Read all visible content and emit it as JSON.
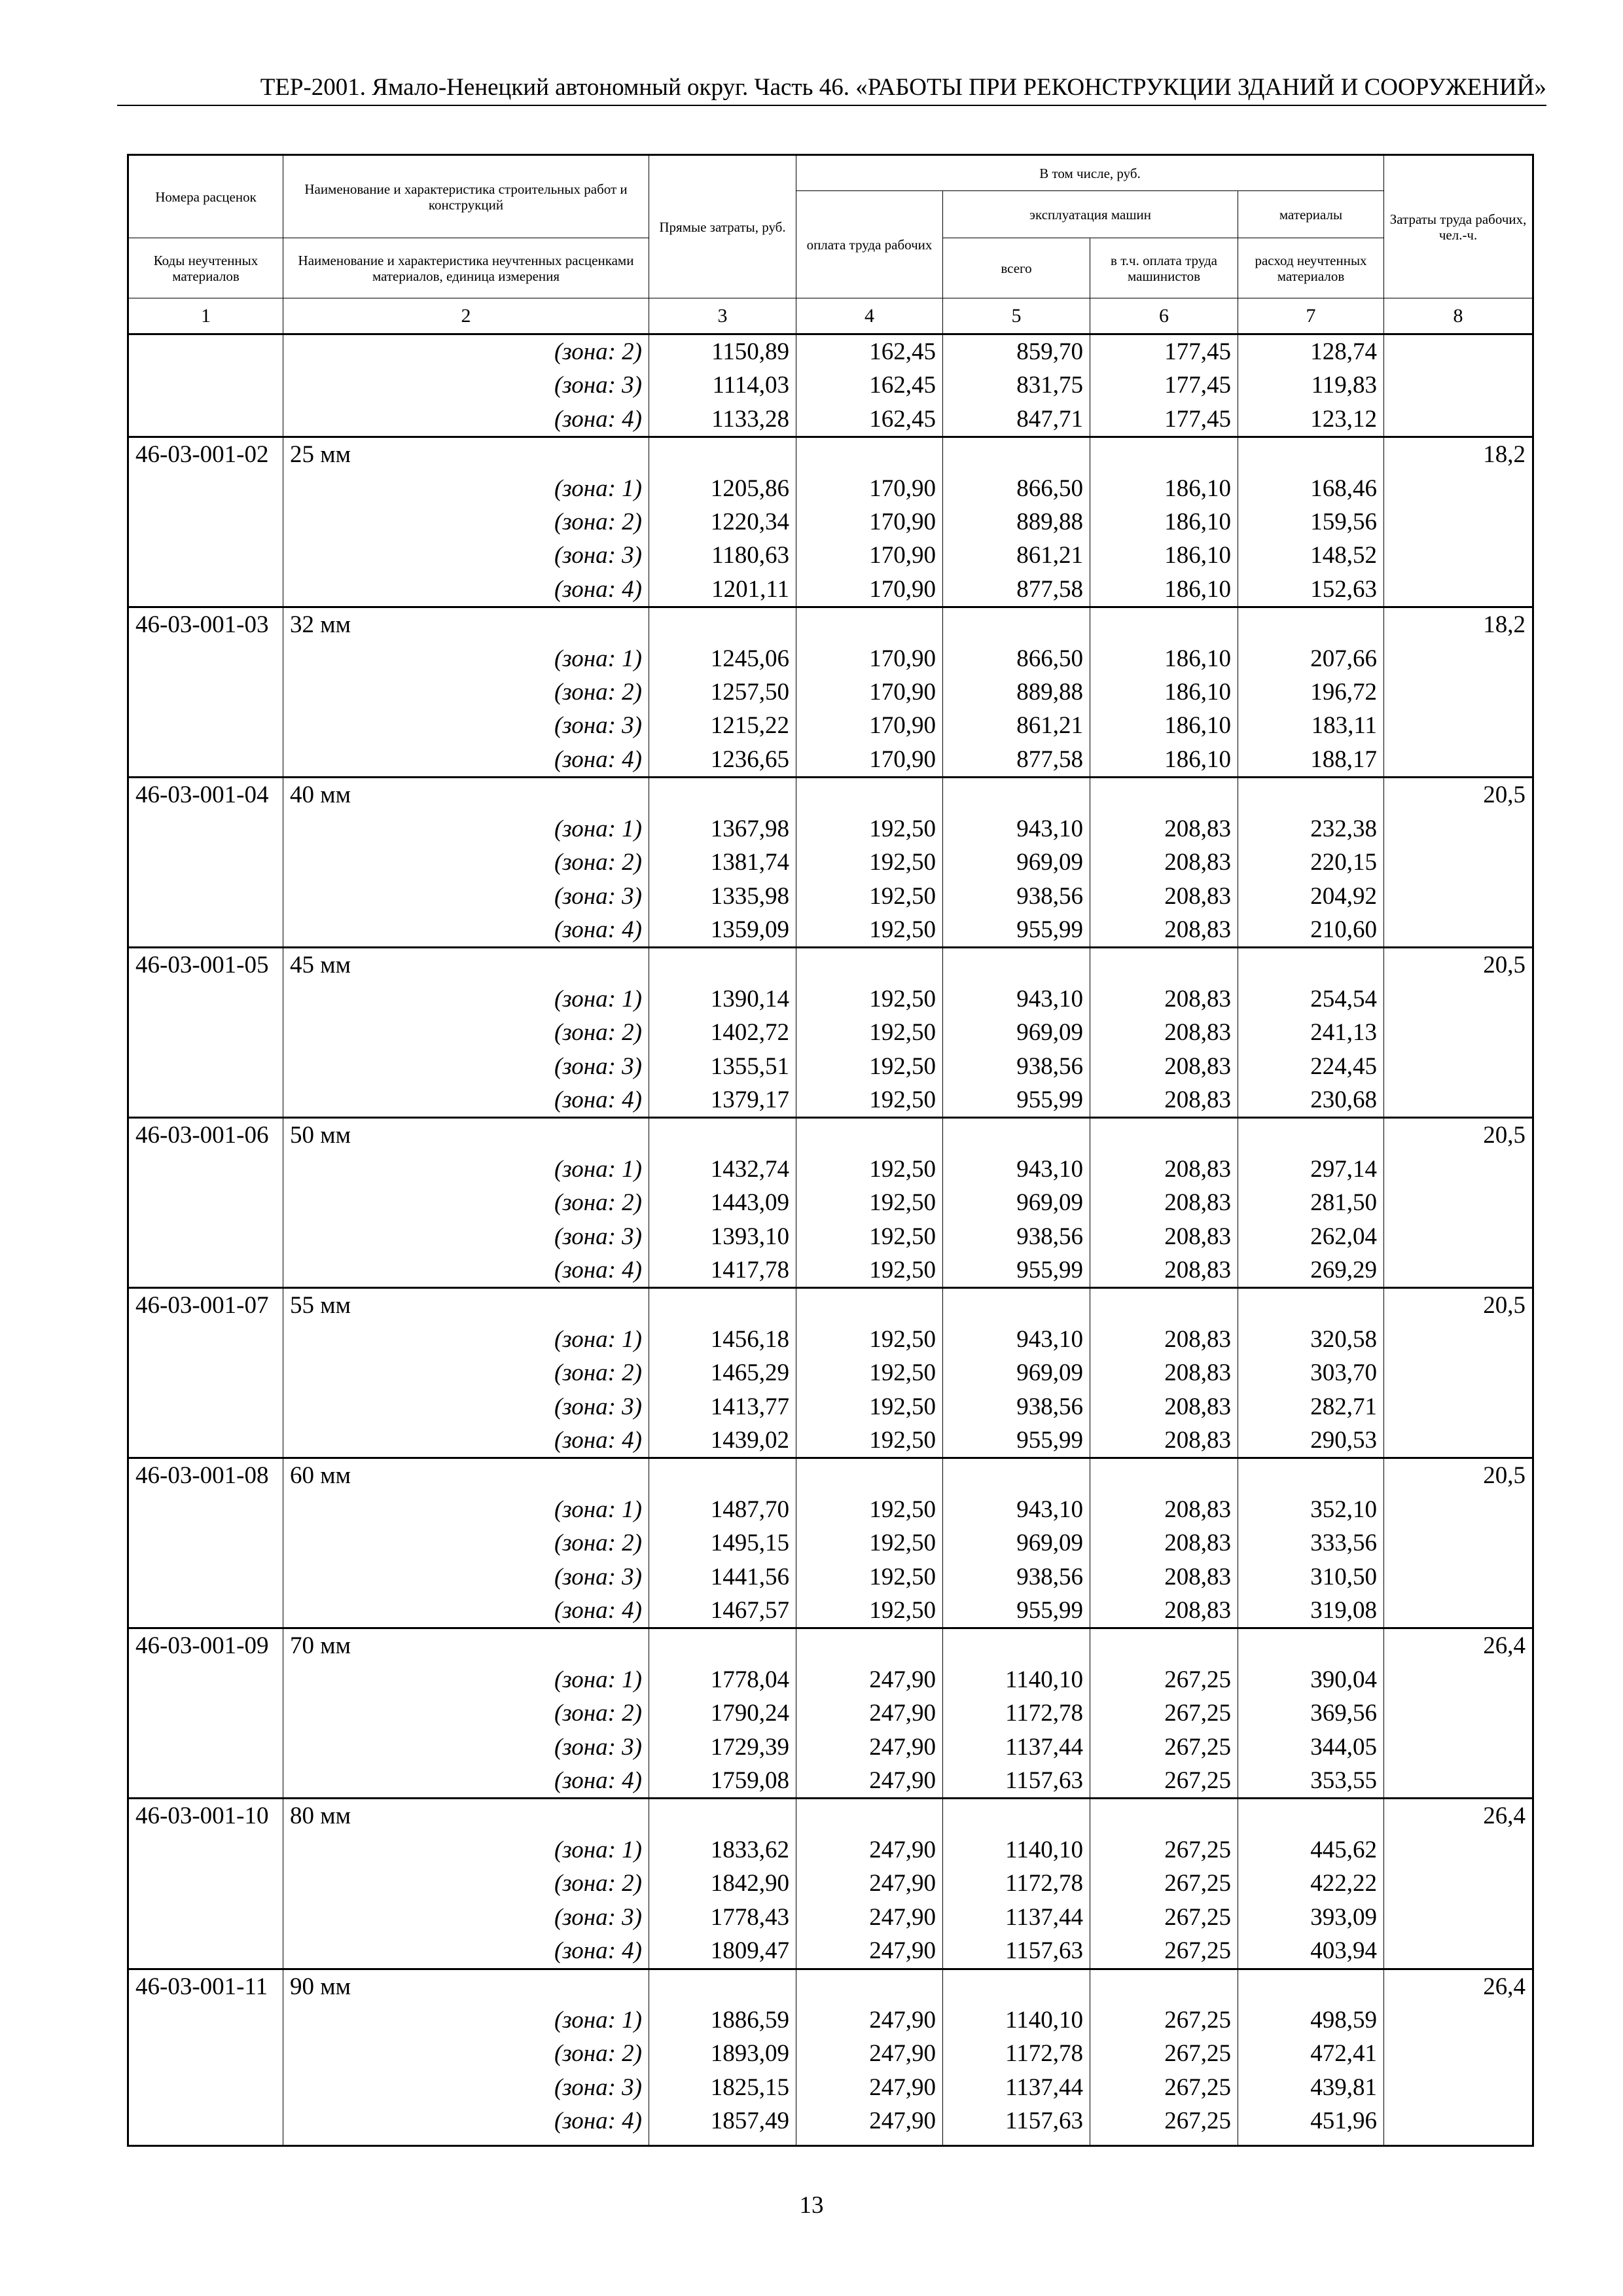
{
  "running_header": "ТЕР-2001. Ямало-Ненецкий автономный округ. Часть 46. «РАБОТЫ ПРИ РЕКОНСТРУКЦИИ ЗДАНИЙ И СООРУЖЕНИЙ»",
  "table": {
    "headers": {
      "col1_top": "Номера расценок",
      "col1_bottom": "Коды неучтенных материалов",
      "col2_top": "Наименование и характеристика строительных работ и конструкций",
      "col2_bottom": "Наименование и характеристика неучтенных расценками материалов, единица измерения",
      "col3": "Прямые затраты, руб.",
      "group": "В том числе, руб.",
      "col4": "оплата труда рабочих",
      "machines": "эксплуатация машин",
      "col5": "всего",
      "col6": "в т.ч. оплата труда машинистов",
      "materials": "материалы",
      "col7": "расход неучтенных материалов",
      "col8": "Затраты труда рабочих, чел.-ч.",
      "numbers": [
        "1",
        "2",
        "3",
        "4",
        "5",
        "6",
        "7",
        "8"
      ]
    },
    "continuation_rows": [
      {
        "zone": "(зона: 2)",
        "values": [
          "1150,89",
          "162,45",
          "859,70",
          "177,45",
          "128,74"
        ]
      },
      {
        "zone": "(зона: 3)",
        "values": [
          "1114,03",
          "162,45",
          "831,75",
          "177,45",
          "119,83"
        ]
      },
      {
        "zone": "(зона: 4)",
        "values": [
          "1133,28",
          "162,45",
          "847,71",
          "177,45",
          "123,12"
        ]
      }
    ],
    "groups": [
      {
        "code": "46-03-001-02",
        "name": "25 мм",
        "labor": "18,2",
        "zones": [
          {
            "zone": "(зона: 1)",
            "values": [
              "1205,86",
              "170,90",
              "866,50",
              "186,10",
              "168,46"
            ]
          },
          {
            "zone": "(зона: 2)",
            "values": [
              "1220,34",
              "170,90",
              "889,88",
              "186,10",
              "159,56"
            ]
          },
          {
            "zone": "(зона: 3)",
            "values": [
              "1180,63",
              "170,90",
              "861,21",
              "186,10",
              "148,52"
            ]
          },
          {
            "zone": "(зона: 4)",
            "values": [
              "1201,11",
              "170,90",
              "877,58",
              "186,10",
              "152,63"
            ]
          }
        ]
      },
      {
        "code": "46-03-001-03",
        "name": "32 мм",
        "labor": "18,2",
        "zones": [
          {
            "zone": "(зона: 1)",
            "values": [
              "1245,06",
              "170,90",
              "866,50",
              "186,10",
              "207,66"
            ]
          },
          {
            "zone": "(зона: 2)",
            "values": [
              "1257,50",
              "170,90",
              "889,88",
              "186,10",
              "196,72"
            ]
          },
          {
            "zone": "(зона: 3)",
            "values": [
              "1215,22",
              "170,90",
              "861,21",
              "186,10",
              "183,11"
            ]
          },
          {
            "zone": "(зона: 4)",
            "values": [
              "1236,65",
              "170,90",
              "877,58",
              "186,10",
              "188,17"
            ]
          }
        ]
      },
      {
        "code": "46-03-001-04",
        "name": "40 мм",
        "labor": "20,5",
        "zones": [
          {
            "zone": "(зона: 1)",
            "values": [
              "1367,98",
              "192,50",
              "943,10",
              "208,83",
              "232,38"
            ]
          },
          {
            "zone": "(зона: 2)",
            "values": [
              "1381,74",
              "192,50",
              "969,09",
              "208,83",
              "220,15"
            ]
          },
          {
            "zone": "(зона: 3)",
            "values": [
              "1335,98",
              "192,50",
              "938,56",
              "208,83",
              "204,92"
            ]
          },
          {
            "zone": "(зона: 4)",
            "values": [
              "1359,09",
              "192,50",
              "955,99",
              "208,83",
              "210,60"
            ]
          }
        ]
      },
      {
        "code": "46-03-001-05",
        "name": "45 мм",
        "labor": "20,5",
        "zones": [
          {
            "zone": "(зона: 1)",
            "values": [
              "1390,14",
              "192,50",
              "943,10",
              "208,83",
              "254,54"
            ]
          },
          {
            "zone": "(зона: 2)",
            "values": [
              "1402,72",
              "192,50",
              "969,09",
              "208,83",
              "241,13"
            ]
          },
          {
            "zone": "(зона: 3)",
            "values": [
              "1355,51",
              "192,50",
              "938,56",
              "208,83",
              "224,45"
            ]
          },
          {
            "zone": "(зона: 4)",
            "values": [
              "1379,17",
              "192,50",
              "955,99",
              "208,83",
              "230,68"
            ]
          }
        ]
      },
      {
        "code": "46-03-001-06",
        "name": "50 мм",
        "labor": "20,5",
        "zones": [
          {
            "zone": "(зона: 1)",
            "values": [
              "1432,74",
              "192,50",
              "943,10",
              "208,83",
              "297,14"
            ]
          },
          {
            "zone": "(зона: 2)",
            "values": [
              "1443,09",
              "192,50",
              "969,09",
              "208,83",
              "281,50"
            ]
          },
          {
            "zone": "(зона: 3)",
            "values": [
              "1393,10",
              "192,50",
              "938,56",
              "208,83",
              "262,04"
            ]
          },
          {
            "zone": "(зона: 4)",
            "values": [
              "1417,78",
              "192,50",
              "955,99",
              "208,83",
              "269,29"
            ]
          }
        ]
      },
      {
        "code": "46-03-001-07",
        "name": "55 мм",
        "labor": "20,5",
        "zones": [
          {
            "zone": "(зона: 1)",
            "values": [
              "1456,18",
              "192,50",
              "943,10",
              "208,83",
              "320,58"
            ]
          },
          {
            "zone": "(зона: 2)",
            "values": [
              "1465,29",
              "192,50",
              "969,09",
              "208,83",
              "303,70"
            ]
          },
          {
            "zone": "(зона: 3)",
            "values": [
              "1413,77",
              "192,50",
              "938,56",
              "208,83",
              "282,71"
            ]
          },
          {
            "zone": "(зона: 4)",
            "values": [
              "1439,02",
              "192,50",
              "955,99",
              "208,83",
              "290,53"
            ]
          }
        ]
      },
      {
        "code": "46-03-001-08",
        "name": "60 мм",
        "labor": "20,5",
        "zones": [
          {
            "zone": "(зона: 1)",
            "values": [
              "1487,70",
              "192,50",
              "943,10",
              "208,83",
              "352,10"
            ]
          },
          {
            "zone": "(зона: 2)",
            "values": [
              "1495,15",
              "192,50",
              "969,09",
              "208,83",
              "333,56"
            ]
          },
          {
            "zone": "(зона: 3)",
            "values": [
              "1441,56",
              "192,50",
              "938,56",
              "208,83",
              "310,50"
            ]
          },
          {
            "zone": "(зона: 4)",
            "values": [
              "1467,57",
              "192,50",
              "955,99",
              "208,83",
              "319,08"
            ]
          }
        ]
      },
      {
        "code": "46-03-001-09",
        "name": "70 мм",
        "labor": "26,4",
        "zones": [
          {
            "zone": "(зона: 1)",
            "values": [
              "1778,04",
              "247,90",
              "1140,10",
              "267,25",
              "390,04"
            ]
          },
          {
            "zone": "(зона: 2)",
            "values": [
              "1790,24",
              "247,90",
              "1172,78",
              "267,25",
              "369,56"
            ]
          },
          {
            "zone": "(зона: 3)",
            "values": [
              "1729,39",
              "247,90",
              "1137,44",
              "267,25",
              "344,05"
            ]
          },
          {
            "zone": "(зона: 4)",
            "values": [
              "1759,08",
              "247,90",
              "1157,63",
              "267,25",
              "353,55"
            ]
          }
        ]
      },
      {
        "code": "46-03-001-10",
        "name": "80 мм",
        "labor": "26,4",
        "zones": [
          {
            "zone": "(зона: 1)",
            "values": [
              "1833,62",
              "247,90",
              "1140,10",
              "267,25",
              "445,62"
            ]
          },
          {
            "zone": "(зона: 2)",
            "values": [
              "1842,90",
              "247,90",
              "1172,78",
              "267,25",
              "422,22"
            ]
          },
          {
            "zone": "(зона: 3)",
            "values": [
              "1778,43",
              "247,90",
              "1137,44",
              "267,25",
              "393,09"
            ]
          },
          {
            "zone": "(зона: 4)",
            "values": [
              "1809,47",
              "247,90",
              "1157,63",
              "267,25",
              "403,94"
            ]
          }
        ]
      },
      {
        "code": "46-03-001-11",
        "name": "90 мм",
        "labor": "26,4",
        "zones": [
          {
            "zone": "(зона: 1)",
            "values": [
              "1886,59",
              "247,90",
              "1140,10",
              "267,25",
              "498,59"
            ]
          },
          {
            "zone": "(зона: 2)",
            "values": [
              "1893,09",
              "247,90",
              "1172,78",
              "267,25",
              "472,41"
            ]
          },
          {
            "zone": "(зона: 3)",
            "values": [
              "1825,15",
              "247,90",
              "1137,44",
              "267,25",
              "439,81"
            ]
          },
          {
            "zone": "(зона: 4)",
            "values": [
              "1857,49",
              "247,90",
              "1157,63",
              "267,25",
              "451,96"
            ]
          }
        ]
      }
    ]
  },
  "page_number": "13"
}
